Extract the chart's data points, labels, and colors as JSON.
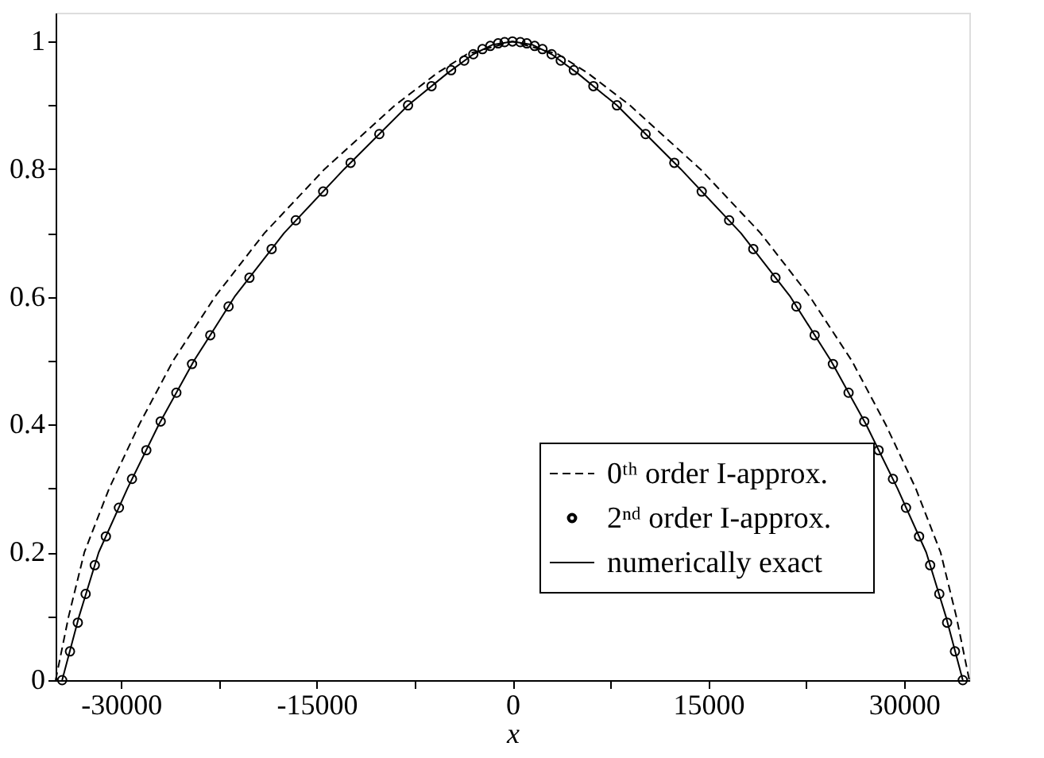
{
  "chart_data": {
    "type": "line",
    "xlabel": "x",
    "xlim": [
      -35000,
      35000
    ],
    "ylim": [
      0,
      1.045
    ],
    "xticks": [
      -30000,
      {
        "value": -22500,
        "label": null
      },
      -15000,
      {
        "value": -7500,
        "label": null
      },
      0,
      {
        "value": 7500,
        "label": null
      },
      15000,
      {
        "value": 22500,
        "label": null
      },
      30000
    ],
    "yticks": [
      0,
      {
        "value": 0.1,
        "label": null
      },
      0.2,
      {
        "value": 0.3,
        "label": null
      },
      0.4,
      {
        "value": 0.5,
        "label": null
      },
      0.6,
      {
        "value": 0.7,
        "label": null
      },
      0.8,
      {
        "value": 0.9,
        "label": null
      },
      1
    ],
    "grid": false,
    "legend": "bottom right",
    "series": [
      {
        "name": "0ᵗʰ order I-approx.",
        "line_style": "dashed",
        "color": "#000000",
        "x": [
          -35000,
          -34000,
          -32800,
          -30900,
          -28600,
          -26000,
          -22800,
          -19000,
          -14400,
          -9000,
          -5800,
          -3500,
          0,
          3500,
          5800,
          9000,
          14400,
          19000,
          22800,
          26000,
          28600,
          30900,
          32800,
          34000,
          35000
        ],
        "values": [
          0,
          0.1,
          0.2,
          0.3,
          0.4,
          0.5,
          0.6,
          0.7,
          0.8,
          0.9,
          0.95,
          0.98,
          1,
          0.98,
          0.95,
          0.9,
          0.8,
          0.7,
          0.6,
          0.5,
          0.4,
          0.3,
          0.2,
          0.1,
          0
        ]
      },
      {
        "name": "2ⁿᵈ order I-approx.",
        "type": "scatter",
        "marker": "circle",
        "color": "#000000",
        "x": [
          -34500,
          -33900,
          -33300,
          -32700,
          -32000,
          -31150,
          -30150,
          -29150,
          -28050,
          -26950,
          -25750,
          -24550,
          -23150,
          -21750,
          -20150,
          -18450,
          -16600,
          -14500,
          -12400,
          -10200,
          -8000,
          -6200,
          -4700,
          -3700,
          -3000,
          -2300,
          -1700,
          -1100,
          -600,
          0,
          600,
          1100,
          1700,
          2300,
          3000,
          3700,
          4700,
          6200,
          8000,
          10200,
          12400,
          14500,
          16600,
          18450,
          20150,
          21750,
          23150,
          24550,
          25750,
          26950,
          28050,
          29150,
          30150,
          31150,
          32000,
          32700,
          33300,
          33900,
          34500
        ],
        "values": [
          0,
          0.045,
          0.09,
          0.135,
          0.18,
          0.225,
          0.27,
          0.315,
          0.36,
          0.405,
          0.45,
          0.495,
          0.54,
          0.585,
          0.63,
          0.675,
          0.72,
          0.765,
          0.81,
          0.855,
          0.9,
          0.93,
          0.955,
          0.97,
          0.98,
          0.988,
          0.993,
          0.997,
          0.999,
          1,
          0.999,
          0.997,
          0.993,
          0.988,
          0.98,
          0.97,
          0.955,
          0.93,
          0.9,
          0.855,
          0.81,
          0.765,
          0.72,
          0.675,
          0.63,
          0.585,
          0.54,
          0.495,
          0.45,
          0.405,
          0.36,
          0.315,
          0.27,
          0.225,
          0.18,
          0.135,
          0.09,
          0.045,
          0
        ]
      },
      {
        "name": "numerically exact",
        "line_style": "solid",
        "color": "#000000",
        "x": [
          -34500,
          -33200,
          -31700,
          -29500,
          -27100,
          -24400,
          -21300,
          -17500,
          -12900,
          -8000,
          -5000,
          -3000,
          -1500,
          0,
          1500,
          3000,
          5000,
          8000,
          12900,
          17500,
          21300,
          24400,
          27100,
          29500,
          31700,
          33200,
          34500
        ],
        "values": [
          0,
          0.1,
          0.2,
          0.3,
          0.4,
          0.5,
          0.6,
          0.7,
          0.8,
          0.9,
          0.95,
          0.98,
          0.995,
          1,
          0.995,
          0.98,
          0.95,
          0.9,
          0.8,
          0.7,
          0.6,
          0.5,
          0.4,
          0.3,
          0.2,
          0.1,
          0
        ]
      }
    ]
  }
}
